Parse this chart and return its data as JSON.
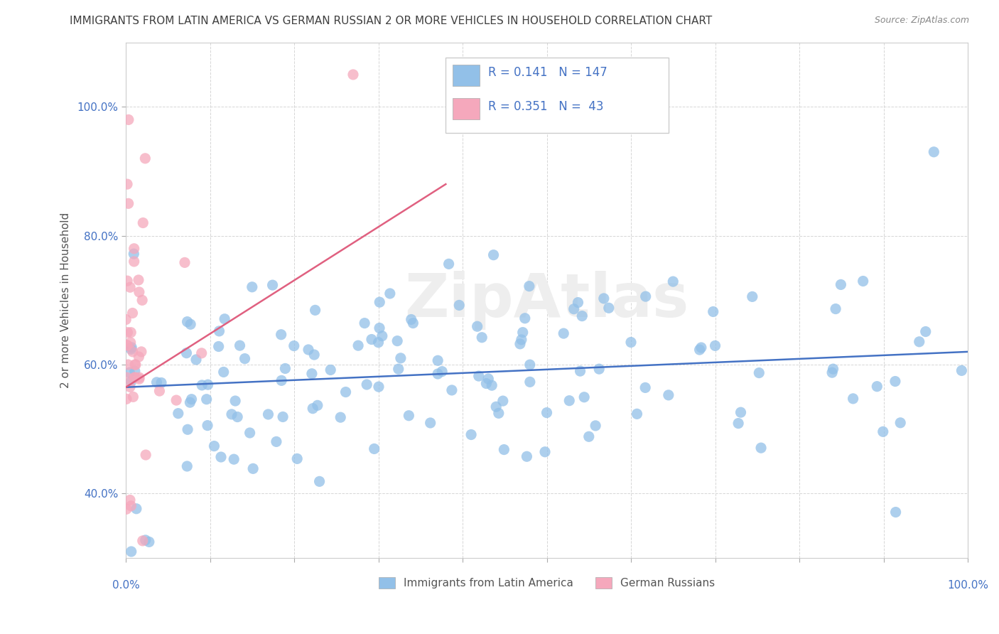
{
  "title": "IMMIGRANTS FROM LATIN AMERICA VS GERMAN RUSSIAN 2 OR MORE VEHICLES IN HOUSEHOLD CORRELATION CHART",
  "source": "Source: ZipAtlas.com",
  "ylabel": "2 or more Vehicles in Household",
  "y_ticks_labels": [
    "40.0%",
    "60.0%",
    "80.0%",
    "100.0%"
  ],
  "y_tick_vals": [
    0.4,
    0.6,
    0.8,
    1.0
  ],
  "legend1_label": "Immigrants from Latin America",
  "legend2_label": "German Russians",
  "r1": 0.141,
  "n1": 147,
  "r2": 0.351,
  "n2": 43,
  "blue_color": "#92c0e8",
  "pink_color": "#f5a8bc",
  "blue_line_color": "#4472c4",
  "pink_line_color": "#e06080",
  "axis_text_color": "#4472c4",
  "title_color": "#404040",
  "source_color": "#888888",
  "watermark_text": "ZipAtlas",
  "watermark_color": "#eeeeee",
  "grid_color": "#cccccc",
  "xlim": [
    0.0,
    1.0
  ],
  "ylim": [
    0.3,
    1.1
  ],
  "blue_line_x0": 0.0,
  "blue_line_x1": 1.0,
  "blue_line_y0": 0.565,
  "blue_line_y1": 0.62,
  "pink_line_x0": 0.0,
  "pink_line_x1": 0.38,
  "pink_line_y0": 0.565,
  "pink_line_y1": 0.88
}
